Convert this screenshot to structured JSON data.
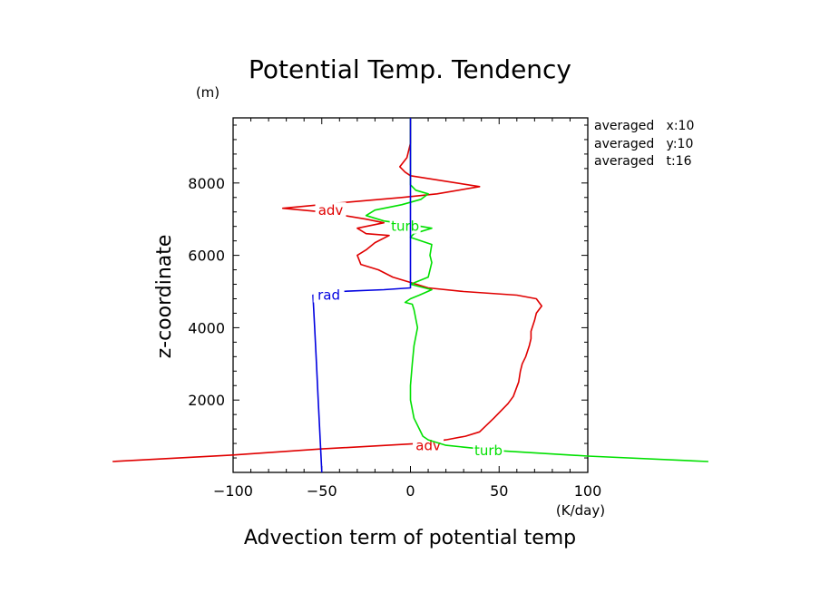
{
  "chart_data": {
    "type": "line",
    "title": "Potential Temp. Tendency",
    "xlabel": "Advection term of potential temp",
    "ylabel": "z-coordinate",
    "x_unit": "(K/day)",
    "y_unit": "(m)",
    "xlim": [
      -100,
      100
    ],
    "ylim": [
      0,
      9800
    ],
    "x_ticks": [
      -100,
      -50,
      0,
      50,
      100
    ],
    "y_ticks": [
      2000,
      4000,
      6000,
      8000
    ],
    "annotations": [
      "averaged   x:10",
      "averaged   y:10",
      "averaged   t:16"
    ],
    "grid": false,
    "series": [
      {
        "name": "adv",
        "color": "#e00000",
        "labels": [
          {
            "x": -45,
            "y": 7240
          },
          {
            "x": 10,
            "y": 740
          }
        ],
        "points": [
          [
            -168,
            300
          ],
          [
            -100,
            480
          ],
          [
            -50,
            650
          ],
          [
            5,
            800
          ],
          [
            20,
            900
          ],
          [
            31,
            1000
          ],
          [
            39,
            1120
          ],
          [
            47,
            1500
          ],
          [
            55,
            1900
          ],
          [
            58,
            2100
          ],
          [
            61,
            2500
          ],
          [
            62,
            2800
          ],
          [
            63,
            3000
          ],
          [
            65,
            3200
          ],
          [
            67,
            3500
          ],
          [
            68,
            3700
          ],
          [
            68,
            3900
          ],
          [
            70,
            4200
          ],
          [
            71,
            4400
          ],
          [
            74,
            4600
          ],
          [
            71,
            4800
          ],
          [
            60,
            4900
          ],
          [
            30,
            5000
          ],
          [
            10,
            5100
          ],
          [
            0,
            5250
          ],
          [
            -10,
            5400
          ],
          [
            -18,
            5600
          ],
          [
            -28,
            5750
          ],
          [
            -30,
            6000
          ],
          [
            -25,
            6150
          ],
          [
            -20,
            6350
          ],
          [
            -12,
            6550
          ],
          [
            -25,
            6600
          ],
          [
            -30,
            6750
          ],
          [
            -15,
            6900
          ],
          [
            -25,
            7000
          ],
          [
            -50,
            7200
          ],
          [
            -72,
            7300
          ],
          [
            -40,
            7450
          ],
          [
            -5,
            7600
          ],
          [
            15,
            7700
          ],
          [
            39,
            7900
          ],
          [
            0,
            8200
          ],
          [
            -3,
            8300
          ],
          [
            -6,
            8450
          ],
          [
            -2,
            8700
          ],
          [
            0,
            9100
          ],
          [
            0,
            9500
          ],
          [
            0,
            9800
          ]
        ]
      },
      {
        "name": "turb",
        "color": "#00e000",
        "labels": [
          {
            "x": -3,
            "y": 6800
          },
          {
            "x": 44,
            "y": 600
          }
        ],
        "points": [
          [
            168,
            300
          ],
          [
            100,
            450
          ],
          [
            50,
            600
          ],
          [
            20,
            750
          ],
          [
            10,
            900
          ],
          [
            7,
            1000
          ],
          [
            5,
            1200
          ],
          [
            2,
            1500
          ],
          [
            0,
            2000
          ],
          [
            0,
            2400
          ],
          [
            1,
            3000
          ],
          [
            2,
            3500
          ],
          [
            4,
            4000
          ],
          [
            2,
            4500
          ],
          [
            1,
            4650
          ],
          [
            -3,
            4700
          ],
          [
            0,
            4800
          ],
          [
            5,
            4900
          ],
          [
            12,
            5050
          ],
          [
            0,
            5200
          ],
          [
            10,
            5400
          ],
          [
            12,
            5800
          ],
          [
            11,
            6000
          ],
          [
            12,
            6300
          ],
          [
            0,
            6500
          ],
          [
            2,
            6600
          ],
          [
            12,
            6750
          ],
          [
            0,
            6850
          ],
          [
            -15,
            6950
          ],
          [
            -25,
            7100
          ],
          [
            -20,
            7250
          ],
          [
            -5,
            7400
          ],
          [
            6,
            7550
          ],
          [
            10,
            7700
          ],
          [
            3,
            7800
          ],
          [
            0,
            7950
          ],
          [
            0,
            8200
          ],
          [
            0,
            8700
          ],
          [
            0,
            9100
          ],
          [
            0,
            9500
          ],
          [
            0,
            9800
          ]
        ]
      },
      {
        "name": "rad",
        "color": "#0000e0",
        "labels": [
          {
            "x": -46,
            "y": 4900
          }
        ],
        "points": [
          [
            -50,
            0
          ],
          [
            -51,
            1000
          ],
          [
            -52,
            2000
          ],
          [
            -53,
            3000
          ],
          [
            -54,
            4000
          ],
          [
            -55,
            4900
          ],
          [
            -40,
            5000
          ],
          [
            -15,
            5050
          ],
          [
            0,
            5100
          ],
          [
            0,
            6000
          ],
          [
            0,
            7000
          ],
          [
            0,
            8000
          ],
          [
            0,
            9000
          ],
          [
            0,
            9800
          ]
        ]
      }
    ]
  }
}
